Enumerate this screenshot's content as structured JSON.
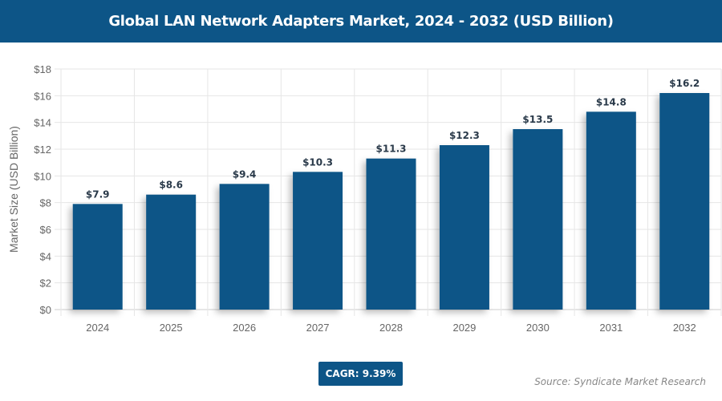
{
  "chart_data": {
    "type": "bar",
    "title": "Global LAN Network Adapters Market, 2024 - 2032 (USD Billion)",
    "xlabel": "",
    "ylabel": "Market Size (USD Billion)",
    "categories": [
      "2024",
      "2025",
      "2026",
      "2027",
      "2028",
      "2029",
      "2030",
      "2031",
      "2032"
    ],
    "values": [
      7.9,
      8.6,
      9.4,
      10.3,
      11.3,
      12.3,
      13.5,
      14.8,
      16.2
    ],
    "data_labels": [
      "$7.9",
      "$8.6",
      "$9.4",
      "$10.3",
      "$11.3",
      "$12.3",
      "$13.5",
      "$14.8",
      "$16.2"
    ],
    "ylim": [
      0,
      18
    ],
    "yticks": [
      "$0",
      "$2",
      "$4",
      "$6",
      "$8",
      "$10",
      "$12",
      "$14",
      "$16",
      "$18"
    ],
    "grid": true,
    "bar_color": "#0d5587"
  },
  "cagr": "CAGR: 9.39%",
  "source": "Source: Syndicate Market Research"
}
